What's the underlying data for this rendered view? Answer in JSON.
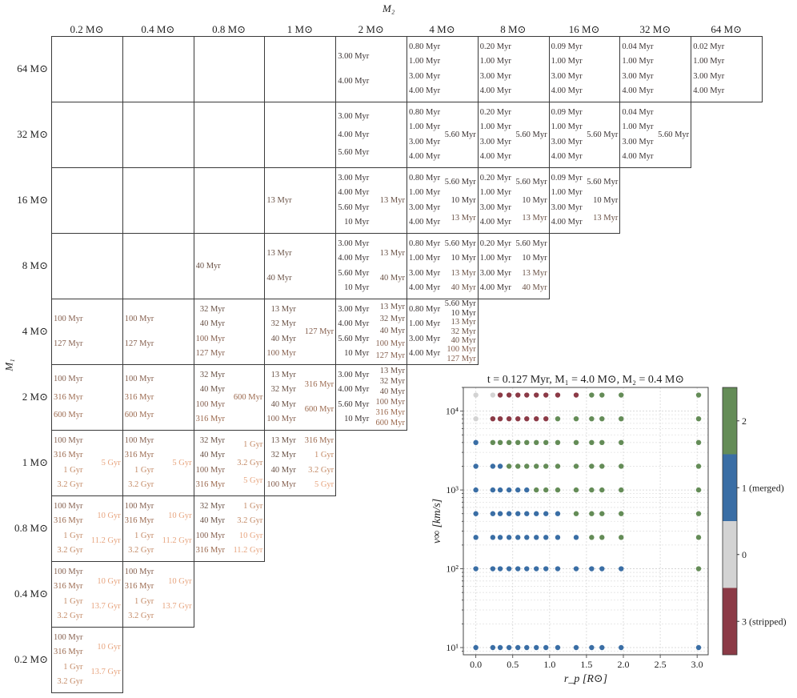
{
  "figure": {
    "column_axis_label": "M₂",
    "row_axis_label": "M₁",
    "columns": [
      "0.2 M⊙",
      "0.4 M⊙",
      "0.8 M⊙",
      "1 M⊙",
      "2 M⊙",
      "4 M⊙",
      "8 M⊙",
      "16 M⊙",
      "32 M⊙",
      "64 M⊙"
    ],
    "rows": [
      "64 M⊙",
      "32 M⊙",
      "16 M⊙",
      "8 M⊙",
      "4 M⊙",
      "2 M⊙",
      "1 M⊙",
      "0.8 M⊙",
      "0.4 M⊙",
      "0.2 M⊙"
    ],
    "age_colors": [
      "#3b3333",
      "#6a5246",
      "#86604f",
      "#9c6a4f",
      "#c48a66",
      "#e7a47e"
    ],
    "cells": [
      [
        {
          "l": [],
          "r": []
        },
        {
          "l": [],
          "r": []
        },
        {
          "l": [],
          "r": []
        },
        {
          "l": [],
          "r": []
        },
        {
          "l": [
            "3.00 Myr",
            "4.00 Myr"
          ],
          "r": []
        },
        {
          "l": [
            "0.80 Myr",
            "1.00 Myr",
            "3.00 Myr",
            "4.00 Myr"
          ],
          "r": []
        },
        {
          "l": [
            "0.20 Myr",
            "1.00 Myr",
            "3.00 Myr",
            "4.00 Myr"
          ],
          "r": []
        },
        {
          "l": [
            "0.09 Myr",
            "1.00 Myr",
            "3.00 Myr",
            "4.00 Myr"
          ],
          "r": []
        },
        {
          "l": [
            "0.04 Myr",
            "1.00 Myr",
            "3.00 Myr",
            "4.00 Myr"
          ],
          "r": []
        },
        {
          "l": [
            "0.02 Myr",
            "1.00 Myr",
            "3.00 Myr",
            "4.00 Myr"
          ],
          "r": []
        }
      ],
      [
        {
          "l": [],
          "r": []
        },
        {
          "l": [],
          "r": []
        },
        {
          "l": [],
          "r": []
        },
        {
          "l": [],
          "r": []
        },
        {
          "l": [
            "3.00 Myr",
            "4.00 Myr",
            "5.60 Myr"
          ],
          "r": []
        },
        {
          "l": [
            "0.80 Myr",
            "1.00 Myr",
            "3.00 Myr",
            "4.00 Myr"
          ],
          "r": [
            "5.60 Myr"
          ]
        },
        {
          "l": [
            "0.20 Myr",
            "1.00 Myr",
            "3.00 Myr",
            "4.00 Myr"
          ],
          "r": [
            "5.60 Myr"
          ]
        },
        {
          "l": [
            "0.09 Myr",
            "1.00 Myr",
            "3.00 Myr",
            "4.00 Myr"
          ],
          "r": [
            "5.60 Myr"
          ]
        },
        {
          "l": [
            "0.04 Myr",
            "1.00 Myr",
            "3.00 Myr",
            "4.00 Myr"
          ],
          "r": [
            "5.60 Myr"
          ]
        }
      ],
      [
        {
          "l": [],
          "r": []
        },
        {
          "l": [],
          "r": []
        },
        {
          "l": [],
          "r": []
        },
        {
          "l": [
            "13 Myr"
          ],
          "r": []
        },
        {
          "l": [
            "3.00 Myr",
            "4.00 Myr",
            "5.60 Myr",
            "10 Myr"
          ],
          "r": [
            "13 Myr"
          ]
        },
        {
          "l": [
            "0.80 Myr",
            "1.00 Myr",
            "3.00 Myr",
            "4.00 Myr"
          ],
          "r": [
            "5.60 Myr",
            "10 Myr",
            "13 Myr"
          ]
        },
        {
          "l": [
            "0.20 Myr",
            "1.00 Myr",
            "3.00 Myr",
            "4.00 Myr"
          ],
          "r": [
            "5.60 Myr",
            "10 Myr",
            "13 Myr"
          ]
        },
        {
          "l": [
            "0.09 Myr",
            "1.00 Myr",
            "3.00 Myr",
            "4.00 Myr"
          ],
          "r": [
            "5.60 Myr",
            "10 Myr",
            "13 Myr"
          ]
        }
      ],
      [
        {
          "l": [],
          "r": []
        },
        {
          "l": [],
          "r": []
        },
        {
          "l": [
            "40 Myr"
          ],
          "r": []
        },
        {
          "l": [
            "13 Myr",
            "40 Myr"
          ],
          "r": []
        },
        {
          "l": [
            "3.00 Myr",
            "4.00 Myr",
            "5.60 Myr",
            "10 Myr"
          ],
          "r": [
            "13 Myr",
            "40 Myr"
          ]
        },
        {
          "l": [
            "0.80 Myr",
            "1.00 Myr",
            "3.00 Myr",
            "4.00 Myr"
          ],
          "r": [
            "5.60 Myr",
            "10 Myr",
            "13 Myr",
            "40 Myr"
          ]
        },
        {
          "l": [
            "0.20 Myr",
            "1.00 Myr",
            "3.00 Myr",
            "4.00 Myr"
          ],
          "r": [
            "5.60 Myr",
            "10 Myr",
            "13 Myr",
            "40 Myr"
          ]
        }
      ],
      [
        {
          "l": [
            "100 Myr",
            "127 Myr"
          ],
          "r": []
        },
        {
          "l": [
            "100 Myr",
            "127 Myr"
          ],
          "r": []
        },
        {
          "l": [
            "32 Myr",
            "40 Myr",
            "100 Myr",
            "127 Myr"
          ],
          "r": []
        },
        {
          "l": [
            "13 Myr",
            "32 Myr",
            "40 Myr",
            "100 Myr"
          ],
          "r": [
            "127 Myr"
          ]
        },
        {
          "l": [
            "3.00 Myr",
            "4.00 Myr",
            "5.60 Myr",
            "10 Myr"
          ],
          "r": [
            "13 Myr",
            "32 Myr",
            "40 Myr",
            "100 Myr",
            "127 Myr"
          ]
        },
        {
          "l": [
            "0.80 Myr",
            "1.00 Myr",
            "3.00 Myr",
            "4.00 Myr"
          ],
          "r": [
            "5.60 Myr",
            "10 Myr",
            "13 Myr",
            "32 Myr",
            "40 Myr",
            "100 Myr",
            "127 Myr"
          ]
        }
      ],
      [
        {
          "l": [
            "100 Myr",
            "316 Myr",
            "600 Myr"
          ],
          "r": []
        },
        {
          "l": [
            "100 Myr",
            "316 Myr",
            "600 Myr"
          ],
          "r": []
        },
        {
          "l": [
            "32 Myr",
            "40 Myr",
            "100 Myr",
            "316 Myr"
          ],
          "r": [
            "600 Myr"
          ]
        },
        {
          "l": [
            "13 Myr",
            "32 Myr",
            "40 Myr",
            "100 Myr"
          ],
          "r": [
            "316 Myr",
            "600 Myr"
          ]
        },
        {
          "l": [
            "3.00 Myr",
            "4.00 Myr",
            "5.60 Myr",
            "10 Myr"
          ],
          "r": [
            "13 Myr",
            "32 Myr",
            "40 Myr",
            "100 Myr",
            "316 Myr",
            "600 Myr"
          ]
        }
      ],
      [
        {
          "l": [
            "100 Myr",
            "316 Myr",
            "1 Gyr",
            "3.2 Gyr"
          ],
          "r": [
            "5 Gyr"
          ]
        },
        {
          "l": [
            "100 Myr",
            "316 Myr",
            "1 Gyr",
            "3.2 Gyr"
          ],
          "r": [
            "5 Gyr"
          ]
        },
        {
          "l": [
            "32 Myr",
            "40 Myr",
            "100 Myr",
            "316 Myr"
          ],
          "r": [
            "1 Gyr",
            "3.2 Gyr",
            "5 Gyr"
          ]
        },
        {
          "l": [
            "13 Myr",
            "32 Myr",
            "40 Myr",
            "100 Myr"
          ],
          "r": [
            "316 Myr",
            "1 Gyr",
            "3.2 Gyr",
            "5 Gyr"
          ]
        }
      ],
      [
        {
          "l": [
            "100 Myr",
            "316 Myr",
            "1 Gyr",
            "3.2 Gyr"
          ],
          "r": [
            "10 Gyr",
            "11.2 Gyr"
          ]
        },
        {
          "l": [
            "100 Myr",
            "316 Myr",
            "1 Gyr",
            "3.2 Gyr"
          ],
          "r": [
            "10 Gyr",
            "11.2 Gyr"
          ]
        },
        {
          "l": [
            "32 Myr",
            "40 Myr",
            "100 Myr",
            "316 Myr"
          ],
          "r": [
            "1 Gyr",
            "3.2 Gyr",
            "10 Gyr",
            "11.2 Gyr"
          ]
        }
      ],
      [
        {
          "l": [
            "100 Myr",
            "316 Myr",
            "1 Gyr",
            "3.2 Gyr"
          ],
          "r": [
            "10 Gyr",
            "13.7 Gyr"
          ]
        },
        {
          "l": [
            "100 Myr",
            "316 Myr",
            "1 Gyr",
            "3.2 Gyr"
          ],
          "r": [
            "10 Gyr",
            "13.7 Gyr"
          ]
        }
      ],
      [
        {
          "l": [
            "100 Myr",
            "316 Myr",
            "1 Gyr",
            "3.2 Gyr"
          ],
          "r": [
            "10 Gyr",
            "13.7 Gyr"
          ]
        }
      ]
    ]
  },
  "chart_data": {
    "type": "scatter",
    "title": "t = 0.127 Myr, M₁ = 4.0 M⊙, M₂ = 0.4 M⊙",
    "xlabel": "r_p [R⊙]",
    "ylabel": "v∞ [km/s]",
    "xlim": [
      -0.17,
      3.15
    ],
    "ylim": [
      8.1,
      20000
    ],
    "yscale": "log",
    "grid": true,
    "xticks": [
      0.0,
      0.5,
      1.0,
      1.5,
      2.0,
      2.5,
      3.0
    ],
    "xtick_labels": [
      "0.0",
      "0.5",
      "1.0",
      "1.5",
      "2.0",
      "2.5",
      "3.0"
    ],
    "yticks": [
      10,
      100,
      1000,
      10000
    ],
    "ytick_labels": [
      "10¹",
      "10²",
      "10³",
      "10⁴"
    ],
    "x": [
      0.0,
      0.23,
      0.33,
      0.45,
      0.57,
      0.69,
      0.82,
      0.95,
      1.11,
      1.36,
      1.57,
      1.71,
      1.97,
      3.02
    ],
    "rows": [
      {
        "v": 16000,
        "outcome": [
          0,
          0,
          3,
          3,
          3,
          3,
          3,
          3,
          3,
          3,
          2,
          2,
          2,
          2
        ]
      },
      {
        "v": 8000,
        "outcome": [
          0,
          3,
          3,
          3,
          3,
          3,
          3,
          3,
          2,
          2,
          2,
          2,
          2,
          2
        ]
      },
      {
        "v": 4000,
        "outcome": [
          1,
          2,
          2,
          2,
          2,
          2,
          2,
          2,
          2,
          2,
          2,
          2,
          2,
          2
        ]
      },
      {
        "v": 2000,
        "outcome": [
          1,
          1,
          1,
          2,
          2,
          2,
          2,
          2,
          2,
          2,
          2,
          2,
          2,
          2
        ]
      },
      {
        "v": 1000,
        "outcome": [
          1,
          1,
          1,
          1,
          1,
          1,
          2,
          2,
          2,
          2,
          2,
          2,
          2,
          2
        ]
      },
      {
        "v": 500,
        "outcome": [
          1,
          1,
          1,
          1,
          1,
          1,
          1,
          1,
          1,
          2,
          2,
          2,
          2,
          2
        ]
      },
      {
        "v": 250,
        "outcome": [
          1,
          1,
          1,
          1,
          1,
          1,
          1,
          1,
          1,
          1,
          2,
          2,
          2,
          2
        ]
      },
      {
        "v": 100,
        "outcome": [
          1,
          1,
          1,
          1,
          1,
          1,
          1,
          1,
          1,
          1,
          1,
          1,
          1,
          2
        ]
      },
      {
        "v": 10,
        "outcome": [
          1,
          1,
          1,
          1,
          1,
          1,
          1,
          1,
          1,
          1,
          1,
          1,
          1,
          1
        ]
      }
    ],
    "colorbar": {
      "order_top_to_bottom": [
        2,
        1,
        0,
        3
      ],
      "labels": {
        "2": "2",
        "1": "1 (merged)",
        "0": "0",
        "3": "3 (stripped)"
      },
      "colors": {
        "0": "#d3d3d3",
        "1": "#3a6ea5",
        "2": "#648c57",
        "3": "#8b3a46"
      }
    }
  }
}
